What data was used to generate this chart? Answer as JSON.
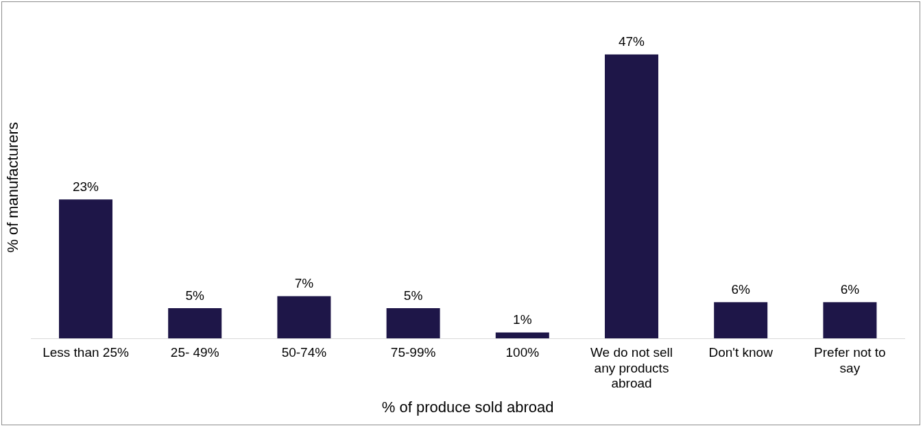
{
  "chart_data": {
    "type": "bar",
    "xlabel": "% of produce sold abroad",
    "ylabel": "% of manufacturers",
    "categories": [
      "Less than 25%",
      "25- 49%",
      "50-74%",
      "75-99%",
      "100%",
      "We do not sell any products abroad",
      "Don't know",
      "Prefer not to say"
    ],
    "values": [
      23,
      5,
      7,
      5,
      1,
      47,
      6,
      6
    ],
    "value_labels": [
      "23%",
      "5%",
      "7%",
      "5%",
      "1%",
      "47%",
      "6%",
      "6%"
    ],
    "color": "#1e1648",
    "tick_labels": "x",
    "grid": false,
    "legend": false
  }
}
